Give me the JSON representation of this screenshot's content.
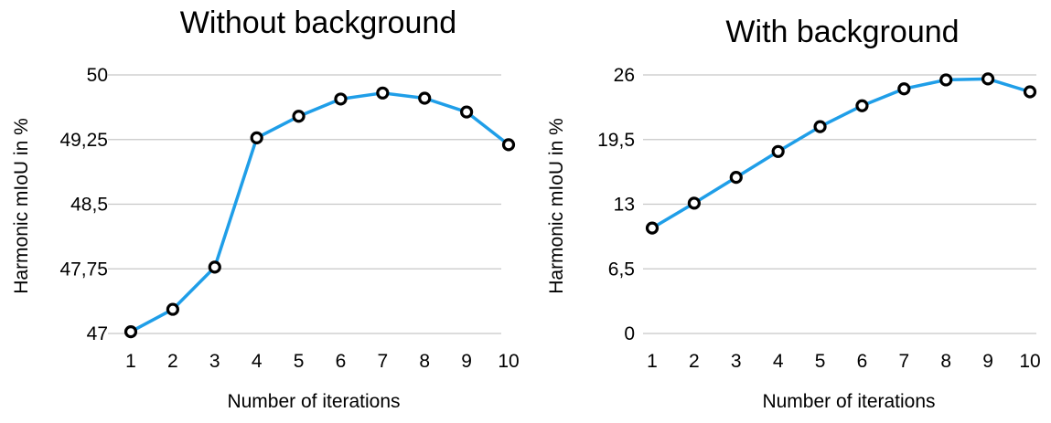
{
  "chart_data": [
    {
      "type": "line",
      "title": "Without background",
      "xlabel": "Number of iterations",
      "ylabel": "Harmonic mIoU in %",
      "x": [
        1,
        2,
        3,
        4,
        5,
        6,
        7,
        8,
        9,
        10
      ],
      "xtick_labels": [
        "1",
        "2",
        "3",
        "4",
        "5",
        "6",
        "7",
        "8",
        "9",
        "10"
      ],
      "ylim": [
        47,
        50
      ],
      "yticks": [
        47,
        47.75,
        48.5,
        49.25,
        50
      ],
      "ytick_labels": [
        "47",
        "47,75",
        "48,5",
        "49,25",
        "50"
      ],
      "grid": true,
      "series": [
        {
          "values": [
            47.02,
            47.28,
            47.77,
            49.27,
            49.52,
            49.72,
            49.79,
            49.73,
            49.57,
            49.19
          ],
          "color": "#1f9ee8",
          "marker": "open-circle"
        }
      ]
    },
    {
      "type": "line",
      "title": "With background",
      "xlabel": "Number of iterations",
      "ylabel": "Harmonic mIoU in %",
      "x": [
        1,
        2,
        3,
        4,
        5,
        6,
        7,
        8,
        9,
        10
      ],
      "xtick_labels": [
        "1",
        "2",
        "3",
        "4",
        "5",
        "6",
        "7",
        "8",
        "9",
        "10"
      ],
      "ylim": [
        0,
        26
      ],
      "yticks": [
        0,
        6.5,
        13,
        19.5,
        26
      ],
      "ytick_labels": [
        "0",
        "6,5",
        "13",
        "19,5",
        "26"
      ],
      "grid": true,
      "series": [
        {
          "values": [
            10.6,
            13.1,
            15.7,
            18.3,
            20.8,
            22.9,
            24.6,
            25.5,
            25.6,
            24.3
          ],
          "color": "#1f9ee8",
          "marker": "open-circle"
        }
      ]
    }
  ]
}
